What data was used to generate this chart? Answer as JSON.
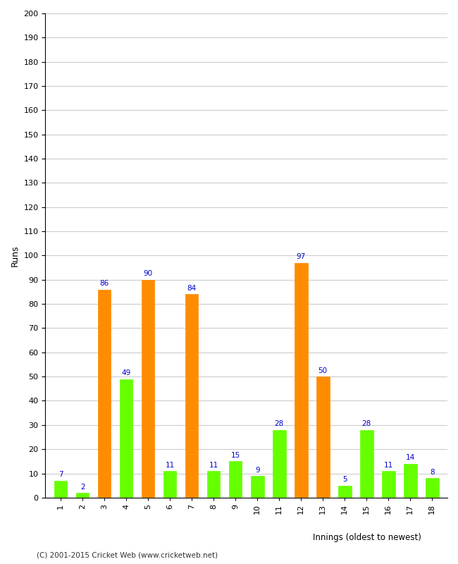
{
  "xlabel": "Innings (oldest to newest)",
  "ylabel": "Runs",
  "innings": [
    1,
    2,
    3,
    4,
    5,
    6,
    7,
    8,
    9,
    10,
    11,
    12,
    13,
    14,
    15,
    16,
    17,
    18
  ],
  "values": [
    7,
    2,
    86,
    49,
    90,
    11,
    84,
    11,
    15,
    9,
    28,
    97,
    50,
    5,
    28,
    11,
    14,
    8
  ],
  "colors": [
    "#66ff00",
    "#66ff00",
    "#ff8c00",
    "#66ff00",
    "#ff8c00",
    "#66ff00",
    "#ff8c00",
    "#66ff00",
    "#66ff00",
    "#66ff00",
    "#66ff00",
    "#ff8c00",
    "#ff8c00",
    "#66ff00",
    "#66ff00",
    "#66ff00",
    "#66ff00",
    "#66ff00"
  ],
  "ylim": [
    0,
    200
  ],
  "yticks": [
    0,
    10,
    20,
    30,
    40,
    50,
    60,
    70,
    80,
    90,
    100,
    110,
    120,
    130,
    140,
    150,
    160,
    170,
    180,
    190,
    200
  ],
  "annotation_color": "#0000cc",
  "bar_width": 0.6,
  "background_color": "#ffffff",
  "grid_color": "#cccccc",
  "copyright": "(C) 2001-2015 Cricket Web (www.cricketweb.net)"
}
